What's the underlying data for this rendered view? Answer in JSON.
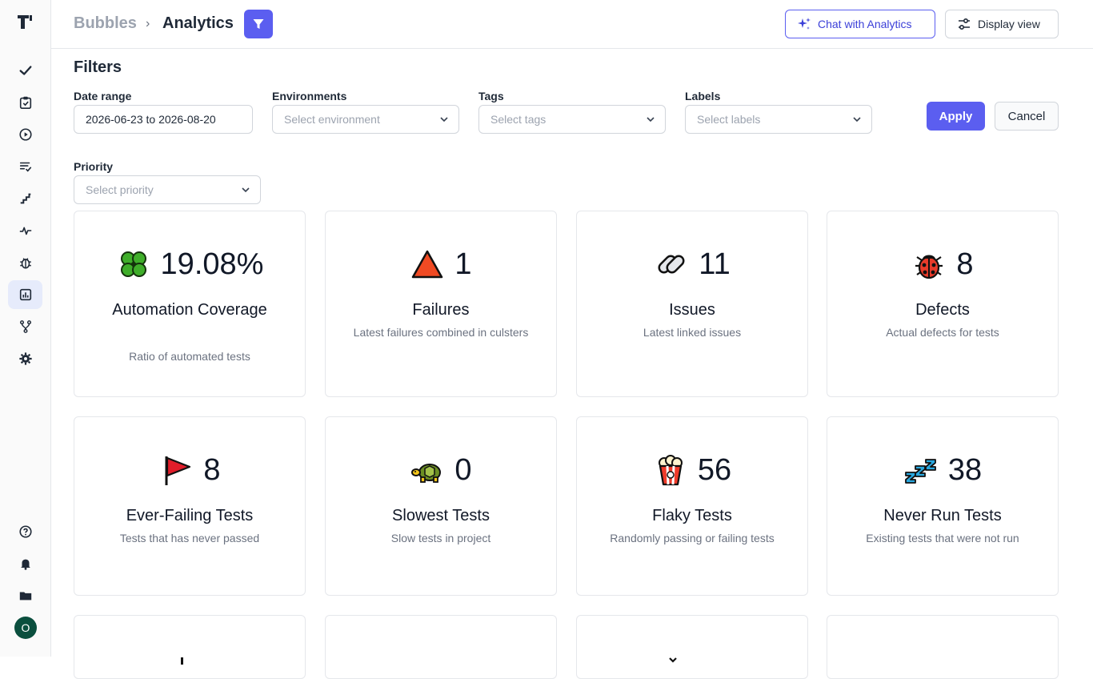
{
  "breadcrumb": {
    "root": "Bubbles",
    "separator": "›",
    "current": "Analytics"
  },
  "header": {
    "chat_label": "Chat with Analytics",
    "display_label": "Display view"
  },
  "filters": {
    "title": "Filters",
    "date_range": {
      "label": "Date range",
      "value": "2026-06-23 to 2026-08-20"
    },
    "environments": {
      "label": "Environments",
      "placeholder": "Select environment"
    },
    "tags": {
      "label": "Tags",
      "placeholder": "Select tags"
    },
    "labels": {
      "label": "Labels",
      "placeholder": "Select labels"
    },
    "priority": {
      "label": "Priority",
      "placeholder": "Select priority"
    },
    "apply_label": "Apply",
    "cancel_label": "Cancel"
  },
  "sidebar": {
    "items": [
      {
        "name": "checkmark-icon"
      },
      {
        "name": "clipboard-check-icon"
      },
      {
        "name": "play-circle-icon"
      },
      {
        "name": "list-check-icon"
      },
      {
        "name": "steps-icon"
      },
      {
        "name": "pulse-icon"
      },
      {
        "name": "bug-icon"
      },
      {
        "name": "chart-bar-icon",
        "active": true
      },
      {
        "name": "branch-icon"
      },
      {
        "name": "gear-icon"
      }
    ],
    "bottom": [
      {
        "name": "help-icon"
      },
      {
        "name": "bell-icon"
      },
      {
        "name": "folder-icon"
      }
    ],
    "avatar_initial": "O"
  },
  "cards": [
    {
      "icon": "four-leaf-clover-icon",
      "value": "19.08%",
      "title": "Automation Coverage",
      "description": "Ratio of automated tests"
    },
    {
      "icon": "red-triangle-icon",
      "value": "1",
      "title": "Failures",
      "description": "Latest failures combined in culsters"
    },
    {
      "icon": "link-icon",
      "value": "11",
      "title": "Issues",
      "description": "Latest linked issues"
    },
    {
      "icon": "ladybug-icon",
      "value": "8",
      "title": "Defects",
      "description": "Actual defects for tests"
    },
    {
      "icon": "red-flag-icon",
      "value": "8",
      "title": "Ever-Failing Tests",
      "description": "Tests that has never passed"
    },
    {
      "icon": "turtle-icon",
      "value": "0",
      "title": "Slowest Tests",
      "description": "Slow tests in project"
    },
    {
      "icon": "popcorn-icon",
      "value": "56",
      "title": "Flaky Tests",
      "description": "Randomly passing or failing tests"
    },
    {
      "icon": "zzz-icon",
      "value": "38",
      "title": "Never Run Tests",
      "description": "Existing tests that were not run"
    }
  ],
  "colors": {
    "accent": "#5b5ef0",
    "active_nav_bg": "#e6ebfb",
    "avatar_bg": "#0b4f3e"
  }
}
